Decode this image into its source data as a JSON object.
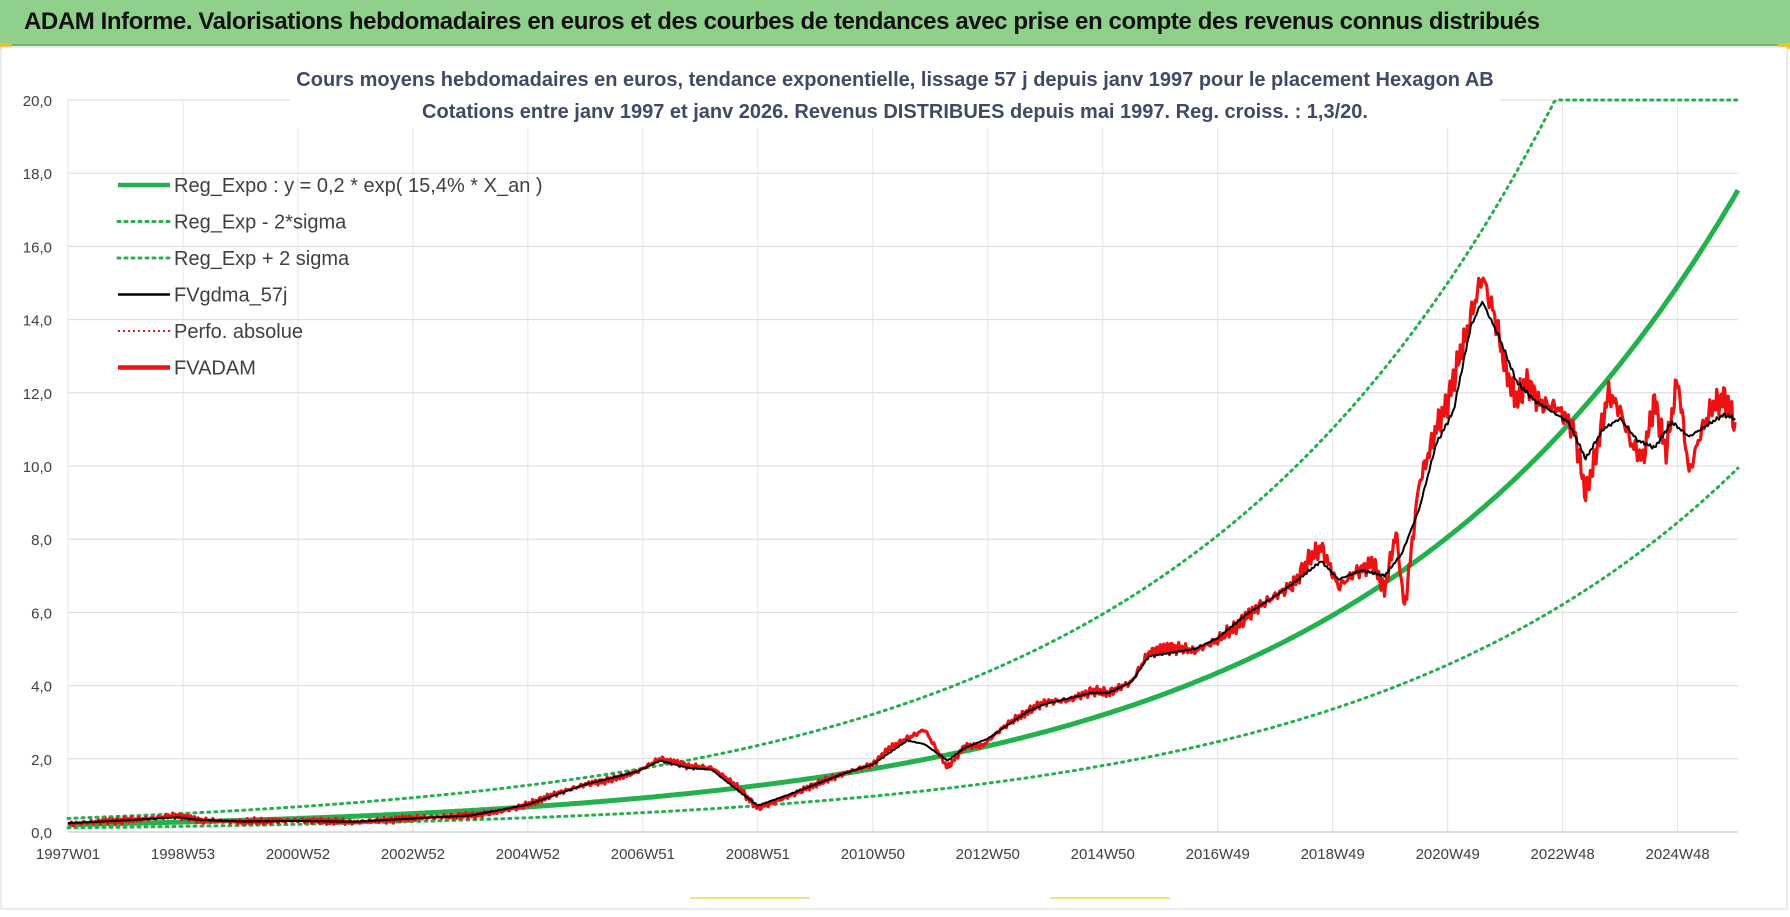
{
  "header": {
    "title": "ADAM Informe. Valorisations hebdomadaires en euros et des courbes de tendances avec prise en compte des revenus connus distribués"
  },
  "colors": {
    "header_bg": "#8fd18a",
    "green": "#22b14c",
    "red": "#ee1111",
    "black": "#000000",
    "accent": "#f2c21b"
  },
  "chart_data": {
    "type": "line",
    "title_line1": "Cours moyens hebdomadaires en euros, tendance exponentielle, lissage 57 j depuis janv 1997  pour le placement Hexagon AB",
    "title_line2": "Cotations entre janv 1997 et janv 2026. Revenus DISTRIBUES depuis mai 1997. Reg. croiss. : 1,3/20.",
    "xlabel": "",
    "ylabel": "",
    "xlim": [
      1997.0,
      2026.05
    ],
    "ylim": [
      0,
      20
    ],
    "grid": true,
    "legend_position": "top-left",
    "x_tick_positions": [
      1997.0,
      1999.0,
      2001.0,
      2003.0,
      2005.0,
      2007.0,
      2009.0,
      2011.0,
      2013.0,
      2015.0,
      2017.0,
      2019.0,
      2021.0,
      2023.0,
      2025.0
    ],
    "x_tick_labels": [
      "1997W01",
      "1998W53",
      "2000W52",
      "2002W52",
      "2004W52",
      "2006W51",
      "2008W51",
      "2010W50",
      "2012W50",
      "2014W50",
      "2016W49",
      "2018W49",
      "2020W49",
      "2022W48",
      "2024W48"
    ],
    "y_ticks": [
      0,
      2,
      4,
      6,
      8,
      10,
      12,
      14,
      16,
      18,
      20
    ],
    "y_tick_labels": [
      "0,0",
      "2,0",
      "4,0",
      "6,0",
      "8,0",
      "10,0",
      "12,0",
      "14,0",
      "16,0",
      "18,0",
      "20,0"
    ],
    "legend": [
      {
        "label": "Reg_Expo : y = 0,2 * exp( 15,4% *  X_an )",
        "style": "solid-thick",
        "color": "#22b14c"
      },
      {
        "label": "Reg_Exp - 2*sigma",
        "style": "dotted",
        "color": "#22b14c"
      },
      {
        "label": "Reg_Exp + 2 sigma",
        "style": "dotted",
        "color": "#22b14c"
      },
      {
        "label": "FVgdma_57j",
        "style": "solid",
        "color": "#000000"
      },
      {
        "label": "Perfo. absolue",
        "style": "dotted-thin",
        "color": "#cc0000"
      },
      {
        "label": "FVADAM",
        "style": "solid-thick",
        "color": "#ee1111"
      }
    ],
    "regression": {
      "a": 0.2,
      "b": 0.154,
      "lower_factor": 0.567,
      "upper_factor": 1.862,
      "clip_max": 20
    },
    "series": [
      {
        "name": "FVADAM",
        "x": [
          1997.0,
          1997.5,
          1998.0,
          1998.5,
          1998.9,
          1999.3,
          2000.0,
          2001.0,
          2002.0,
          2002.5,
          2003.0,
          2004.0,
          2004.5,
          2005.0,
          2005.5,
          2006.0,
          2006.5,
          2006.9,
          2007.3,
          2007.8,
          2008.2,
          2008.6,
          2009.0,
          2009.5,
          2010.0,
          2010.5,
          2011.0,
          2011.3,
          2011.6,
          2011.9,
          2012.3,
          2012.6,
          2012.9,
          2013.3,
          2013.7,
          2014.0,
          2014.4,
          2014.8,
          2015.1,
          2015.5,
          2015.8,
          2016.2,
          2016.6,
          2017.0,
          2017.3,
          2017.7,
          2018.0,
          2018.3,
          2018.6,
          2018.8,
          2019.1,
          2019.4,
          2019.7,
          2019.9,
          2020.1,
          2020.25,
          2020.5,
          2020.8,
          2021.0,
          2021.3,
          2021.6,
          2021.8,
          2022.0,
          2022.2,
          2022.4,
          2022.6,
          2022.9,
          2023.2,
          2023.4,
          2023.6,
          2023.8,
          2024.0,
          2024.2,
          2024.4,
          2024.6,
          2024.8,
          2025.0,
          2025.2,
          2025.4,
          2025.6,
          2025.8,
          2026.0
        ],
        "y": [
          0.22,
          0.28,
          0.32,
          0.38,
          0.45,
          0.32,
          0.28,
          0.32,
          0.27,
          0.32,
          0.38,
          0.45,
          0.55,
          0.75,
          1.05,
          1.3,
          1.45,
          1.65,
          2.0,
          1.8,
          1.75,
          1.3,
          0.65,
          0.95,
          1.3,
          1.6,
          1.85,
          2.3,
          2.55,
          2.8,
          1.75,
          2.35,
          2.35,
          2.9,
          3.3,
          3.55,
          3.6,
          3.85,
          3.8,
          4.1,
          4.9,
          5.05,
          4.95,
          5.25,
          5.6,
          6.15,
          6.45,
          6.75,
          7.45,
          7.8,
          6.7,
          7.1,
          7.35,
          6.6,
          8.2,
          6.1,
          9.5,
          11.0,
          11.8,
          13.5,
          15.2,
          14.2,
          12.7,
          11.8,
          12.3,
          11.7,
          11.6,
          11.0,
          9.2,
          10.5,
          12.0,
          11.5,
          10.6,
          10.2,
          11.8,
          10.4,
          12.4,
          9.8,
          10.9,
          11.6,
          11.9,
          11.2
        ]
      },
      {
        "name": "FVgdma_57j",
        "x": [
          1997.0,
          1998.0,
          1998.9,
          1999.3,
          2000.0,
          2001.0,
          2002.0,
          2003.0,
          2004.0,
          2005.0,
          2006.0,
          2006.9,
          2007.3,
          2007.8,
          2008.2,
          2008.6,
          2009.0,
          2009.5,
          2010.0,
          2010.5,
          2011.0,
          2011.6,
          2011.9,
          2012.3,
          2012.6,
          2013.0,
          2013.7,
          2014.0,
          2014.4,
          2014.8,
          2015.1,
          2015.5,
          2015.8,
          2016.2,
          2016.6,
          2017.0,
          2017.5,
          2018.0,
          2018.4,
          2018.8,
          2019.1,
          2019.5,
          2019.9,
          2020.2,
          2020.5,
          2020.8,
          2021.1,
          2021.4,
          2021.6,
          2021.9,
          2022.2,
          2022.5,
          2022.8,
          2023.1,
          2023.4,
          2023.7,
          2024.0,
          2024.3,
          2024.6,
          2024.9,
          2025.2,
          2025.5,
          2025.8,
          2026.0
        ],
        "y": [
          0.24,
          0.32,
          0.4,
          0.33,
          0.29,
          0.3,
          0.28,
          0.37,
          0.45,
          0.75,
          1.3,
          1.65,
          1.95,
          1.75,
          1.7,
          1.2,
          0.72,
          1.0,
          1.3,
          1.6,
          1.85,
          2.5,
          2.4,
          1.95,
          2.3,
          2.55,
          3.3,
          3.5,
          3.65,
          3.8,
          3.8,
          4.1,
          4.8,
          4.9,
          5.0,
          5.3,
          5.95,
          6.45,
          6.9,
          7.4,
          6.9,
          7.15,
          7.0,
          7.6,
          8.8,
          10.6,
          11.5,
          13.8,
          14.5,
          13.5,
          12.3,
          11.8,
          11.5,
          11.2,
          10.2,
          11.0,
          11.3,
          10.7,
          10.5,
          11.2,
          10.8,
          11.1,
          11.4,
          11.3
        ]
      }
    ]
  }
}
